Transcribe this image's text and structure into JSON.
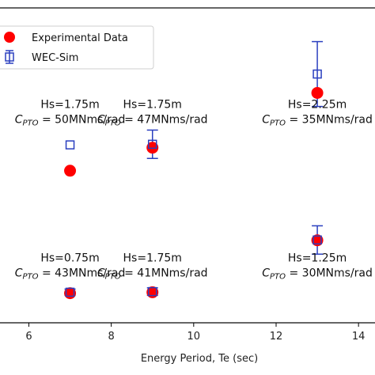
{
  "chart_data": {
    "type": "scatter",
    "xlabel": "Energy Period, Te (sec)",
    "ylabel": "",
    "title": "",
    "xlim": [
      5.3,
      14.4
    ],
    "ylim": [
      0,
      1
    ],
    "xticks": [
      6,
      8,
      10,
      12,
      14
    ],
    "grid": false,
    "legend_position": "top-left",
    "series": [
      {
        "name": "Experimental Data",
        "marker": "filled-circle",
        "color": "#ff0000",
        "points": [
          {
            "x": 7,
            "y": 0.483
          },
          {
            "x": 9,
            "y": 0.556
          },
          {
            "x": 13,
            "y": 0.73
          },
          {
            "x": 7,
            "y": 0.094
          },
          {
            "x": 9,
            "y": 0.097
          },
          {
            "x": 13,
            "y": 0.262
          }
        ]
      },
      {
        "name": "WEC-Sim",
        "marker": "open-square-errorbar",
        "color": "#2a3fbf",
        "points": [
          {
            "x": 7,
            "y": 0.565,
            "err": 0.0
          },
          {
            "x": 9,
            "y": 0.567,
            "err": 0.045
          },
          {
            "x": 13,
            "y": 0.79,
            "err": 0.103
          },
          {
            "x": 7,
            "y": 0.097,
            "err": 0.01
          },
          {
            "x": 9,
            "y": 0.099,
            "err": 0.012
          },
          {
            "x": 13,
            "y": 0.263,
            "err": 0.045
          }
        ]
      }
    ],
    "annotations": [
      {
        "x": 7,
        "y": 0.682,
        "line1": "Hs=1.75m",
        "line2": "C_PTO = 50MNms/rad"
      },
      {
        "x": 9,
        "y": 0.682,
        "line1": "Hs=1.75m",
        "line2": "C_PTO = 47MNms/rad"
      },
      {
        "x": 13,
        "y": 0.682,
        "line1": "Hs=2.25m",
        "line2": "C_PTO = 35MNms/rad"
      },
      {
        "x": 7,
        "y": 0.195,
        "line1": "Hs=0.75m",
        "line2": "C_PTO = 43MNms/rad"
      },
      {
        "x": 9,
        "y": 0.195,
        "line1": "Hs=1.75m",
        "line2": "C_PTO = 41MNms/rad"
      },
      {
        "x": 13,
        "y": 0.195,
        "line1": "Hs=1.25m",
        "line2": "C_PTO = 30MNms/rad"
      }
    ]
  }
}
